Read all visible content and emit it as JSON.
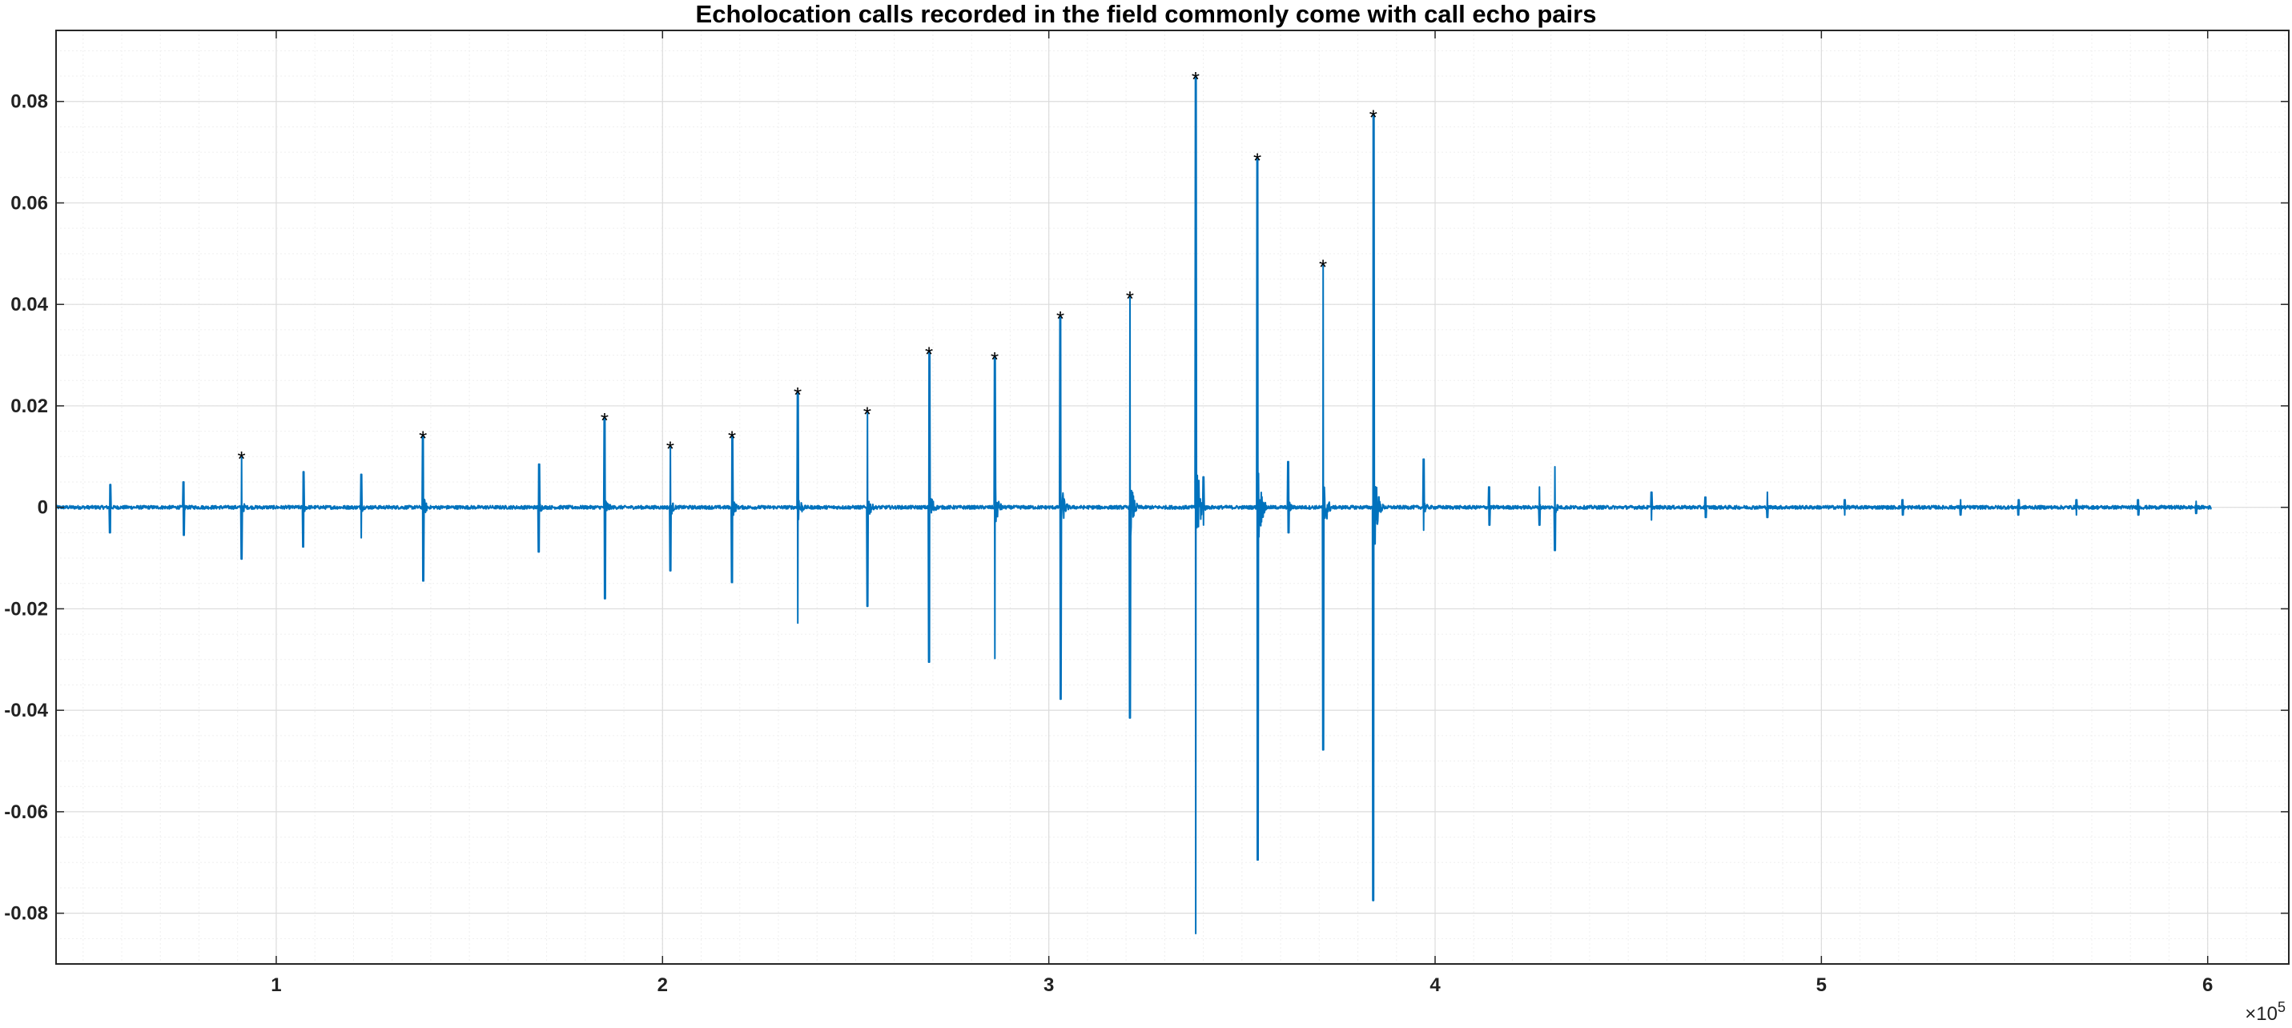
{
  "chart_data": {
    "type": "line",
    "title": "Echolocation calls recorded in the field commonly come with call echo pairs",
    "xlabel": "",
    "ylabel": "",
    "x_exponent_label": "×10",
    "x_exponent_power": "5",
    "xlim": [
      43000,
      621000
    ],
    "ylim": [
      -0.09,
      0.094
    ],
    "grid": true,
    "minor_grid": true,
    "x_ticks": [
      100000,
      200000,
      300000,
      400000,
      500000,
      600000
    ],
    "x_tick_labels": [
      "1",
      "2",
      "3",
      "4",
      "5",
      "6"
    ],
    "y_ticks": [
      -0.08,
      -0.06,
      -0.04,
      -0.02,
      0,
      0.02,
      0.04,
      0.06,
      0.08
    ],
    "y_tick_labels": [
      "-0.08",
      "-0.06",
      "-0.04",
      "-0.02",
      "0",
      "0.02",
      "0.04",
      "0.06",
      "0.08"
    ],
    "signal_color": "#0072BD",
    "marker_color": "#000000",
    "signal_x_range": [
      43000,
      601000
    ],
    "series": [
      {
        "kind": "signal_bursts",
        "x": [
          57000,
          76000,
          91000,
          107000,
          122000,
          138000,
          168000,
          185000,
          202000,
          218000,
          235000,
          253000,
          269000,
          286000,
          303000,
          321000,
          338000,
          354000,
          371000,
          384000,
          362000,
          340000,
          397000,
          414000,
          427000,
          431000,
          456000,
          470000,
          486000,
          506000,
          521000,
          536000,
          551000,
          566000,
          582000,
          597000
        ],
        "pos": [
          0.0045,
          0.005,
          0.0102,
          0.007,
          0.0065,
          0.0142,
          0.0085,
          0.0178,
          0.0122,
          0.0142,
          0.0228,
          0.019,
          0.0308,
          0.0298,
          0.0378,
          0.0418,
          0.085,
          0.069,
          0.048,
          0.0775,
          0.009,
          0.006,
          0.0095,
          0.004,
          0.004,
          0.008,
          0.003,
          0.002,
          0.003,
          0.0015,
          0.0015,
          0.0015,
          0.0015,
          0.0015,
          0.0015,
          0.0012
        ],
        "neg": [
          -0.005,
          -0.0055,
          -0.0102,
          -0.0078,
          -0.006,
          -0.0145,
          -0.0088,
          -0.018,
          -0.0125,
          -0.0148,
          -0.0228,
          -0.0195,
          -0.0305,
          -0.0298,
          -0.0378,
          -0.0415,
          -0.084,
          -0.0695,
          -0.0478,
          -0.0775,
          -0.005,
          -0.0035,
          -0.0045,
          -0.0035,
          -0.0035,
          -0.0085,
          -0.0025,
          -0.002,
          -0.002,
          -0.0015,
          -0.0015,
          -0.0015,
          -0.0015,
          -0.0015,
          -0.0015,
          -0.0012
        ]
      },
      {
        "kind": "peak_markers",
        "marker": "*",
        "x": [
          91000,
          138000,
          185000,
          202000,
          218000,
          235000,
          253000,
          269000,
          286000,
          303000,
          321000,
          338000,
          354000,
          371000,
          384000
        ],
        "y": [
          0.0102,
          0.0142,
          0.0178,
          0.0122,
          0.0142,
          0.0228,
          0.019,
          0.0308,
          0.0298,
          0.0378,
          0.0418,
          0.085,
          0.069,
          0.048,
          0.0775
        ]
      }
    ]
  }
}
